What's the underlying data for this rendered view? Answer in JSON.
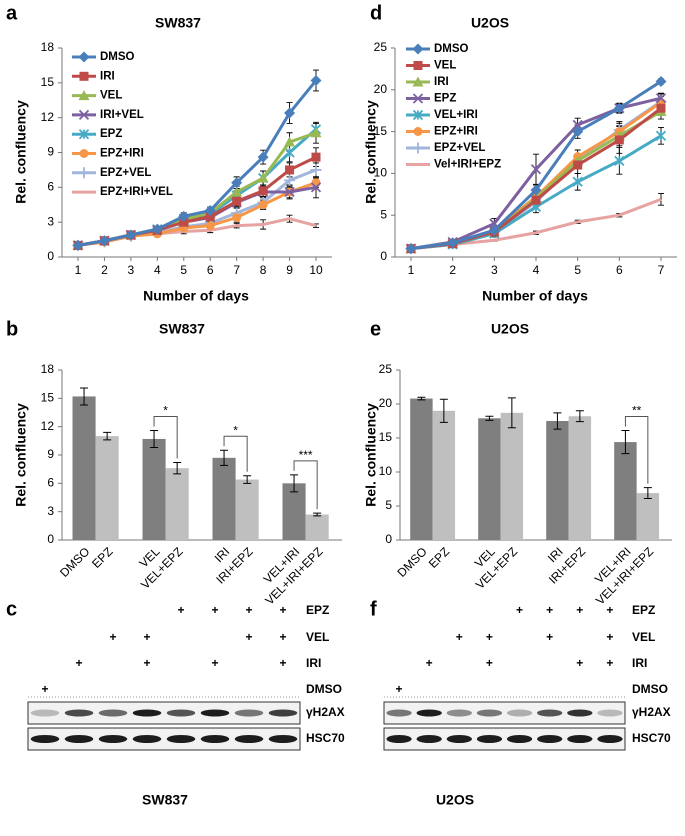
{
  "chart_data": [
    {
      "type": "line",
      "label": "a",
      "title": "SW837",
      "xlabel": "Number of days",
      "ylabel": "Rel. confluency",
      "categories": [
        "1",
        "2",
        "3",
        "4",
        "5",
        "6",
        "7",
        "8",
        "9",
        "10"
      ],
      "ylim": [
        0,
        18
      ],
      "yticks": [
        0,
        3,
        6,
        9,
        12,
        15,
        18
      ],
      "legend": "upper left",
      "series": [
        {
          "name": "DMSO",
          "color": "#4a7ebb",
          "marker": "diamond",
          "values": [
            1,
            1.4,
            1.9,
            2.4,
            3.5,
            4.0,
            6.4,
            8.6,
            12.4,
            15.2
          ],
          "errors": [
            0.05,
            0.1,
            0.15,
            0.2,
            0.3,
            0.3,
            0.5,
            0.6,
            0.9,
            0.9
          ]
        },
        {
          "name": "IRI",
          "color": "#be4b48",
          "marker": "square",
          "values": [
            1,
            1.4,
            1.9,
            2.3,
            3.0,
            3.5,
            4.8,
            5.7,
            7.5,
            8.6
          ],
          "errors": [
            0.05,
            0.1,
            0.1,
            0.2,
            0.2,
            0.3,
            0.4,
            0.5,
            0.6,
            0.8
          ]
        },
        {
          "name": "VEL",
          "color": "#98b954",
          "marker": "triangle",
          "values": [
            1,
            1.4,
            1.9,
            2.4,
            3.2,
            3.8,
            5.6,
            6.8,
            9.9,
            10.7
          ],
          "errors": [
            0.05,
            0.1,
            0.1,
            0.2,
            0.3,
            0.3,
            0.5,
            0.6,
            0.8,
            0.9
          ]
        },
        {
          "name": "IRI+VEL",
          "color": "#7d60a0",
          "marker": "x",
          "values": [
            1,
            1.4,
            1.9,
            2.3,
            3.0,
            3.4,
            4.7,
            5.6,
            5.6,
            6.0
          ],
          "errors": [
            0.05,
            0.1,
            0.1,
            0.2,
            0.2,
            0.3,
            0.4,
            0.5,
            0.6,
            0.9
          ]
        },
        {
          "name": "EPZ",
          "color": "#46aac5",
          "marker": "star",
          "values": [
            1,
            1.4,
            1.9,
            2.4,
            3.3,
            3.7,
            5.3,
            6.8,
            9.0,
            11.0
          ],
          "errors": [
            0.05,
            0.1,
            0.1,
            0.2,
            0.3,
            0.3,
            0.4,
            0.6,
            0.8,
            0.5
          ]
        },
        {
          "name": "EPZ+IRI",
          "color": "#f79646",
          "marker": "circle",
          "values": [
            1,
            1.3,
            1.8,
            2.0,
            2.5,
            2.7,
            3.4,
            4.5,
            5.6,
            6.4
          ],
          "errors": [
            0.05,
            0.1,
            0.1,
            0.2,
            0.2,
            0.3,
            0.4,
            0.4,
            0.5,
            0.4
          ]
        },
        {
          "name": "EPZ+VEL",
          "color": "#a0b6dd",
          "marker": "plus",
          "values": [
            1,
            1.3,
            1.8,
            2.1,
            2.6,
            2.9,
            3.8,
            4.7,
            6.6,
            7.5
          ],
          "errors": [
            0.05,
            0.1,
            0.1,
            0.2,
            0.2,
            0.2,
            0.4,
            0.5,
            0.6,
            0.6
          ]
        },
        {
          "name": "EPZ+IRI+VEL",
          "color": "#e6a3a2",
          "marker": "none",
          "values": [
            1,
            1.3,
            1.8,
            2.0,
            2.2,
            2.3,
            2.7,
            2.8,
            3.3,
            2.7
          ],
          "errors": [
            0.05,
            0.1,
            0.1,
            0.1,
            0.2,
            0.2,
            0.2,
            0.4,
            0.3,
            0.15
          ]
        }
      ]
    },
    {
      "type": "bar",
      "label": "b",
      "title": "SW837",
      "ylabel": "Rel. confluency",
      "categories": [
        "DMSO",
        "EPZ",
        "VEL",
        "VEL+EPZ",
        "IRI",
        "IRI+EPZ",
        "VEL+IRI",
        "VEL+IRI+EPZ"
      ],
      "values": [
        15.2,
        11.0,
        10.7,
        7.6,
        8.7,
        6.4,
        6.0,
        2.7
      ],
      "errors": [
        0.9,
        0.4,
        0.9,
        0.6,
        0.8,
        0.4,
        0.9,
        0.15
      ],
      "colors": [
        "#7f7f7f",
        "#bfbfbf",
        "#7f7f7f",
        "#bfbfbf",
        "#7f7f7f",
        "#bfbfbf",
        "#7f7f7f",
        "#bfbfbf"
      ],
      "annotations": [
        "*",
        "*",
        "***"
      ],
      "ylim": [
        0,
        18
      ],
      "yticks": [
        0,
        3,
        6,
        9,
        12,
        15,
        18
      ]
    },
    {
      "type": "line",
      "label": "d",
      "title": "U2OS",
      "xlabel": "Number of days",
      "ylabel": "Rel. confluency",
      "categories": [
        "1",
        "2",
        "3",
        "4",
        "5",
        "6",
        "7"
      ],
      "ylim": [
        0,
        25
      ],
      "yticks": [
        0,
        5,
        10,
        15,
        20,
        25
      ],
      "legend": "upper left",
      "series": [
        {
          "name": "DMSO",
          "color": "#4a7ebb",
          "marker": "diamond",
          "values": [
            1,
            1.7,
            3.2,
            8.0,
            15.0,
            17.8,
            21.0
          ],
          "errors": [
            0.1,
            0.2,
            0.3,
            0.6,
            0.8,
            0.5,
            0.3
          ]
        },
        {
          "name": "VEL",
          "color": "#be4b48",
          "marker": "square",
          "values": [
            1,
            1.6,
            3.0,
            6.8,
            11.0,
            14.0,
            17.8
          ],
          "errors": [
            0.1,
            0.2,
            0.3,
            0.6,
            1.0,
            1.6,
            0.6
          ]
        },
        {
          "name": "IRI",
          "color": "#98b954",
          "marker": "triangle",
          "values": [
            1,
            1.6,
            3.0,
            7.0,
            11.5,
            14.5,
            17.4
          ],
          "errors": [
            0.1,
            0.2,
            0.3,
            0.6,
            0.8,
            1.2,
            0.9
          ]
        },
        {
          "name": "EPZ",
          "color": "#7d60a0",
          "marker": "x",
          "values": [
            1,
            1.8,
            4.0,
            10.5,
            15.8,
            17.8,
            19.0
          ],
          "errors": [
            0.1,
            0.2,
            0.6,
            1.8,
            0.8,
            0.6,
            0.6
          ]
        },
        {
          "name": "VEL+IRI",
          "color": "#46aac5",
          "marker": "star",
          "values": [
            1,
            1.5,
            2.8,
            6.0,
            9.0,
            11.5,
            14.5
          ],
          "errors": [
            0.1,
            0.2,
            0.4,
            0.7,
            1.0,
            1.6,
            1.0
          ]
        },
        {
          "name": "EPZ+IRI",
          "color": "#f79646",
          "marker": "circle",
          "values": [
            1,
            1.6,
            3.2,
            7.2,
            12.0,
            15.0,
            18.5
          ],
          "errors": [
            0.1,
            0.2,
            0.3,
            0.6,
            0.8,
            1.0,
            0.7
          ]
        },
        {
          "name": "EPZ+VEL",
          "color": "#a0b6dd",
          "marker": "plus",
          "values": [
            1,
            1.6,
            3.0,
            6.6,
            11.5,
            15.2,
            18.6
          ],
          "errors": [
            0.1,
            0.2,
            0.3,
            0.6,
            0.8,
            1.0,
            0.9
          ]
        },
        {
          "name": "Vel+IRI+EPZ",
          "color": "#e6a3a2",
          "marker": "none",
          "values": [
            1,
            1.5,
            2.0,
            2.9,
            4.2,
            5.0,
            6.9
          ],
          "errors": [
            0.1,
            0.1,
            0.1,
            0.2,
            0.2,
            0.2,
            0.7
          ]
        }
      ]
    },
    {
      "type": "bar",
      "label": "e",
      "title": "U2OS",
      "ylabel": "Rel. confluency",
      "categories": [
        "DMSO",
        "EPZ",
        "VEL",
        "VEL+EPZ",
        "IRI",
        "IRI+EPZ",
        "VEL+IRI",
        "VEL+IRI+EPZ"
      ],
      "values": [
        20.8,
        19.0,
        17.9,
        18.7,
        17.5,
        18.2,
        14.4,
        6.9
      ],
      "errors": [
        0.2,
        1.7,
        0.3,
        2.2,
        1.2,
        0.8,
        1.7,
        0.8
      ],
      "colors": [
        "#7f7f7f",
        "#bfbfbf",
        "#7f7f7f",
        "#bfbfbf",
        "#7f7f7f",
        "#bfbfbf",
        "#7f7f7f",
        "#bfbfbf"
      ],
      "annotations": [
        "**"
      ],
      "ylim": [
        0,
        25
      ],
      "yticks": [
        0,
        5,
        10,
        15,
        20,
        25
      ]
    }
  ],
  "blots": [
    {
      "label": "c",
      "title": "SW837",
      "rows": [
        {
          "label": "EPZ",
          "marks": [
            null,
            null,
            null,
            null,
            "+",
            "+",
            "+",
            "+"
          ]
        },
        {
          "label": "VEL",
          "marks": [
            null,
            null,
            "+",
            "+",
            null,
            null,
            "+",
            "+"
          ]
        },
        {
          "label": "IRI",
          "marks": [
            null,
            "+",
            null,
            "+",
            null,
            "+",
            null,
            "+"
          ]
        },
        {
          "label": "DMSO",
          "marks": [
            "+",
            null,
            null,
            null,
            null,
            null,
            null,
            null
          ]
        }
      ],
      "bands": [
        "γH2AX",
        "HSC70"
      ]
    },
    {
      "label": "f",
      "title": "U2OS",
      "rows": [
        {
          "label": "EPZ",
          "marks": [
            null,
            null,
            null,
            null,
            "+",
            "+",
            "+",
            "+"
          ]
        },
        {
          "label": "VEL",
          "marks": [
            null,
            null,
            "+",
            "+",
            null,
            "+",
            null,
            "+"
          ]
        },
        {
          "label": "IRI",
          "marks": [
            null,
            "+",
            null,
            "+",
            null,
            null,
            "+",
            "+"
          ]
        },
        {
          "label": "DMSO",
          "marks": [
            "+",
            null,
            null,
            null,
            null,
            null,
            null,
            null
          ]
        }
      ],
      "bands": [
        "γH2AX",
        "HSC70"
      ]
    }
  ]
}
